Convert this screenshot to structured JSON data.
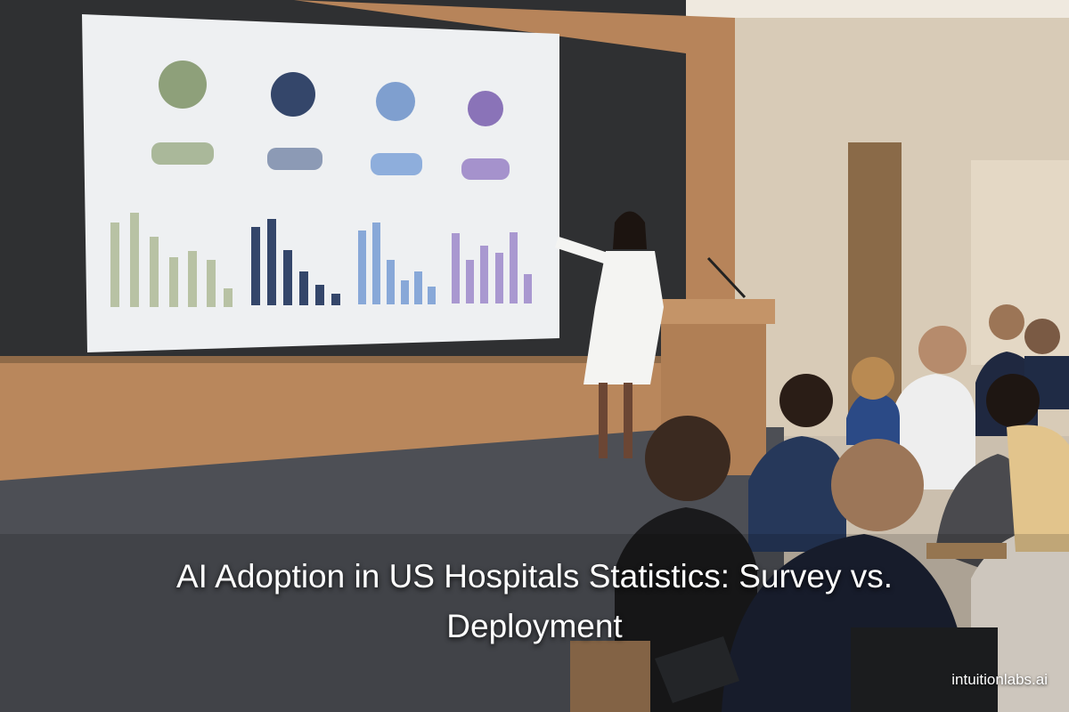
{
  "title": "AI Adoption in US Hospitals Statistics: Survey vs. Deployment",
  "watermark": "intuitionlabs.ai"
}
